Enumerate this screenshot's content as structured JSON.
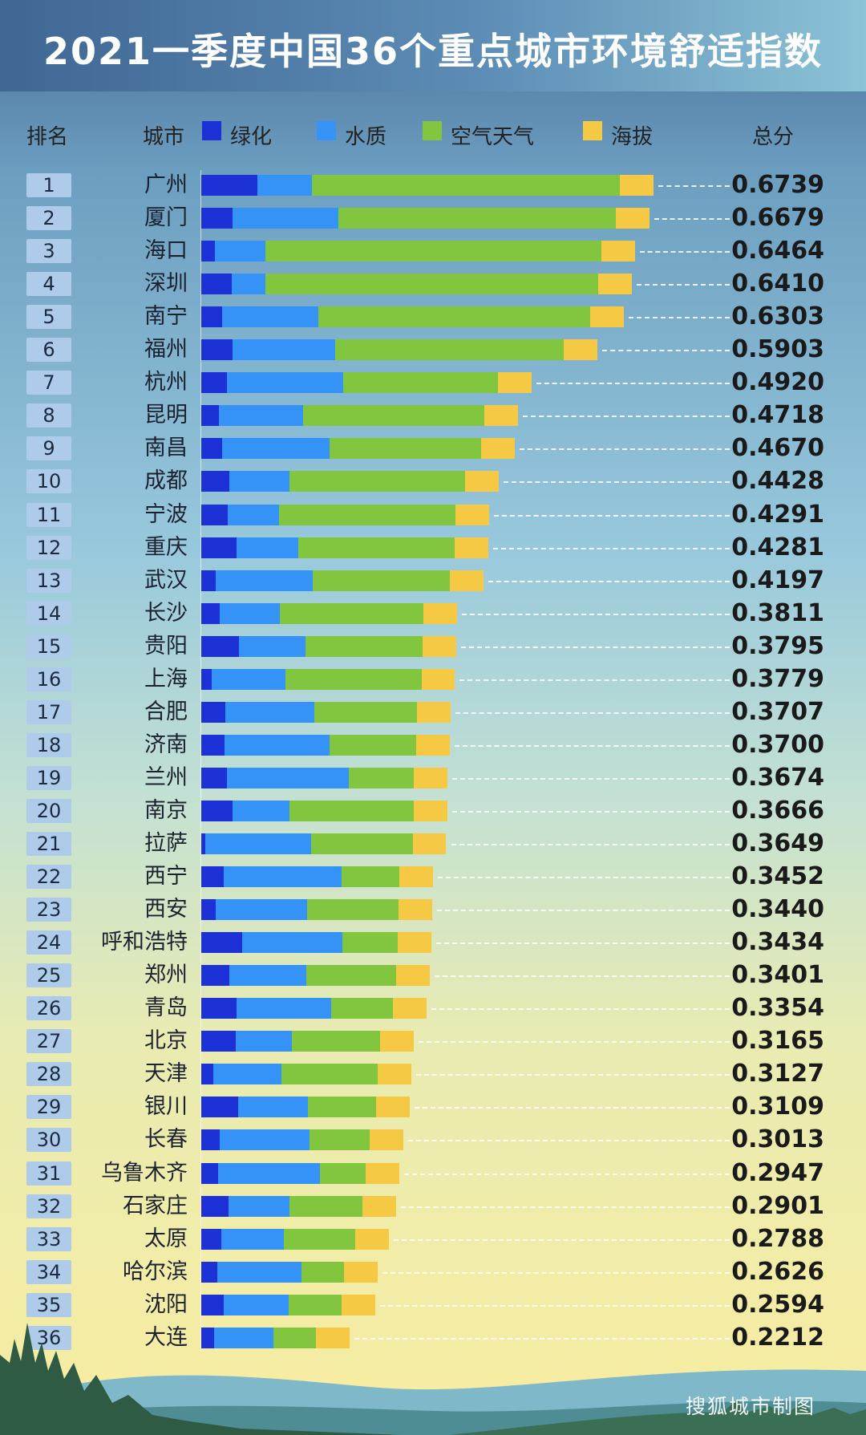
{
  "title": "2021一季度中国36个重点城市环境舒适指数",
  "headers": {
    "rank": "排名",
    "city": "城市",
    "total": "总分"
  },
  "legend": [
    {
      "label": "绿化",
      "color": "#1c32d6"
    },
    {
      "label": "水质",
      "color": "#3592f7"
    },
    {
      "label": "空气天气",
      "color": "#82c640"
    },
    {
      "label": "海拔",
      "color": "#f6c945"
    }
  ],
  "credit": "搜狐城市制图",
  "chart_data": {
    "type": "bar",
    "stacked": true,
    "orientation": "horizontal",
    "title": "2021一季度中国36个重点城市环境舒适指数",
    "series_names": [
      "绿化",
      "水质",
      "空气天气",
      "海拔"
    ],
    "rows": [
      {
        "rank": "1",
        "city": "广州",
        "total": "0.6739",
        "v": [
          0.084,
          0.081,
          0.459,
          0.05
        ]
      },
      {
        "rank": "2",
        "city": "厦门",
        "total": "0.6679",
        "v": [
          0.047,
          0.157,
          0.414,
          0.05
        ]
      },
      {
        "rank": "3",
        "city": "海口",
        "total": "0.6464",
        "v": [
          0.02,
          0.076,
          0.5,
          0.05
        ]
      },
      {
        "rank": "4",
        "city": "深圳",
        "total": "0.6410",
        "v": [
          0.045,
          0.05,
          0.496,
          0.05
        ]
      },
      {
        "rank": "5",
        "city": "南宁",
        "total": "0.6303",
        "v": [
          0.031,
          0.143,
          0.406,
          0.05
        ]
      },
      {
        "rank": "6",
        "city": "福州",
        "total": "0.5903",
        "v": [
          0.046,
          0.154,
          0.34,
          0.05
        ]
      },
      {
        "rank": "7",
        "city": "杭州",
        "total": "0.4920",
        "v": [
          0.038,
          0.173,
          0.231,
          0.05
        ]
      },
      {
        "rank": "8",
        "city": "昆明",
        "total": "0.4718",
        "v": [
          0.026,
          0.126,
          0.27,
          0.05
        ]
      },
      {
        "rank": "9",
        "city": "南昌",
        "total": "0.4670",
        "v": [
          0.031,
          0.16,
          0.226,
          0.05
        ]
      },
      {
        "rank": "10",
        "city": "成都",
        "total": "0.4428",
        "v": [
          0.042,
          0.089,
          0.262,
          0.05
        ]
      },
      {
        "rank": "11",
        "city": "宁波",
        "total": "0.4291",
        "v": [
          0.04,
          0.076,
          0.263,
          0.05
        ]
      },
      {
        "rank": "12",
        "city": "重庆",
        "total": "0.4281",
        "v": [
          0.052,
          0.093,
          0.233,
          0.05
        ]
      },
      {
        "rank": "13",
        "city": "武汉",
        "total": "0.4197",
        "v": [
          0.022,
          0.144,
          0.204,
          0.05
        ]
      },
      {
        "rank": "14",
        "city": "长沙",
        "total": "0.3811",
        "v": [
          0.028,
          0.089,
          0.214,
          0.05
        ]
      },
      {
        "rank": "15",
        "city": "贵阳",
        "total": "0.3795",
        "v": [
          0.056,
          0.099,
          0.175,
          0.05
        ]
      },
      {
        "rank": "16",
        "city": "上海",
        "total": "0.3779",
        "v": [
          0.016,
          0.109,
          0.203,
          0.05
        ]
      },
      {
        "rank": "17",
        "city": "合肥",
        "total": "0.3707",
        "v": [
          0.036,
          0.132,
          0.153,
          0.05
        ]
      },
      {
        "rank": "18",
        "city": "济南",
        "total": "0.3700",
        "v": [
          0.035,
          0.156,
          0.129,
          0.05
        ]
      },
      {
        "rank": "19",
        "city": "兰州",
        "total": "0.3674",
        "v": [
          0.038,
          0.182,
          0.097,
          0.05
        ]
      },
      {
        "rank": "20",
        "city": "南京",
        "total": "0.3666",
        "v": [
          0.047,
          0.084,
          0.186,
          0.05
        ]
      },
      {
        "rank": "21",
        "city": "拉萨",
        "total": "0.3649",
        "v": [
          0.006,
          0.158,
          0.151,
          0.05
        ]
      },
      {
        "rank": "22",
        "city": "西宁",
        "total": "0.3452",
        "v": [
          0.033,
          0.176,
          0.086,
          0.05
        ]
      },
      {
        "rank": "23",
        "city": "西安",
        "total": "0.3440",
        "v": [
          0.022,
          0.136,
          0.136,
          0.05
        ]
      },
      {
        "rank": "24",
        "city": "呼和浩特",
        "total": "0.3434",
        "v": [
          0.061,
          0.149,
          0.083,
          0.05
        ]
      },
      {
        "rank": "25",
        "city": "郑州",
        "total": "0.3401",
        "v": [
          0.042,
          0.115,
          0.133,
          0.05
        ]
      },
      {
        "rank": "26",
        "city": "青岛",
        "total": "0.3354",
        "v": [
          0.053,
          0.141,
          0.092,
          0.05
        ]
      },
      {
        "rank": "27",
        "city": "北京",
        "total": "0.3165",
        "v": [
          0.051,
          0.084,
          0.132,
          0.05
        ]
      },
      {
        "rank": "28",
        "city": "天津",
        "total": "0.3127",
        "v": [
          0.018,
          0.102,
          0.143,
          0.05
        ]
      },
      {
        "rank": "29",
        "city": "银川",
        "total": "0.3109",
        "v": [
          0.055,
          0.104,
          0.102,
          0.05
        ]
      },
      {
        "rank": "30",
        "city": "长春",
        "total": "0.3013",
        "v": [
          0.028,
          0.133,
          0.09,
          0.05
        ]
      },
      {
        "rank": "31",
        "city": "乌鲁木齐",
        "total": "0.2947",
        "v": [
          0.025,
          0.152,
          0.068,
          0.05
        ]
      },
      {
        "rank": "32",
        "city": "石家庄",
        "total": "0.2901",
        "v": [
          0.041,
          0.091,
          0.108,
          0.05
        ]
      },
      {
        "rank": "33",
        "city": "太原",
        "total": "0.2788",
        "v": [
          0.03,
          0.093,
          0.106,
          0.05
        ]
      },
      {
        "rank": "34",
        "city": "哈尔滨",
        "total": "0.2626",
        "v": [
          0.024,
          0.125,
          0.064,
          0.05
        ]
      },
      {
        "rank": "35",
        "city": "沈阳",
        "total": "0.2594",
        "v": [
          0.034,
          0.096,
          0.079,
          0.05
        ]
      },
      {
        "rank": "36",
        "city": "大连",
        "total": "0.2212",
        "v": [
          0.019,
          0.089,
          0.063,
          0.05
        ]
      }
    ]
  }
}
